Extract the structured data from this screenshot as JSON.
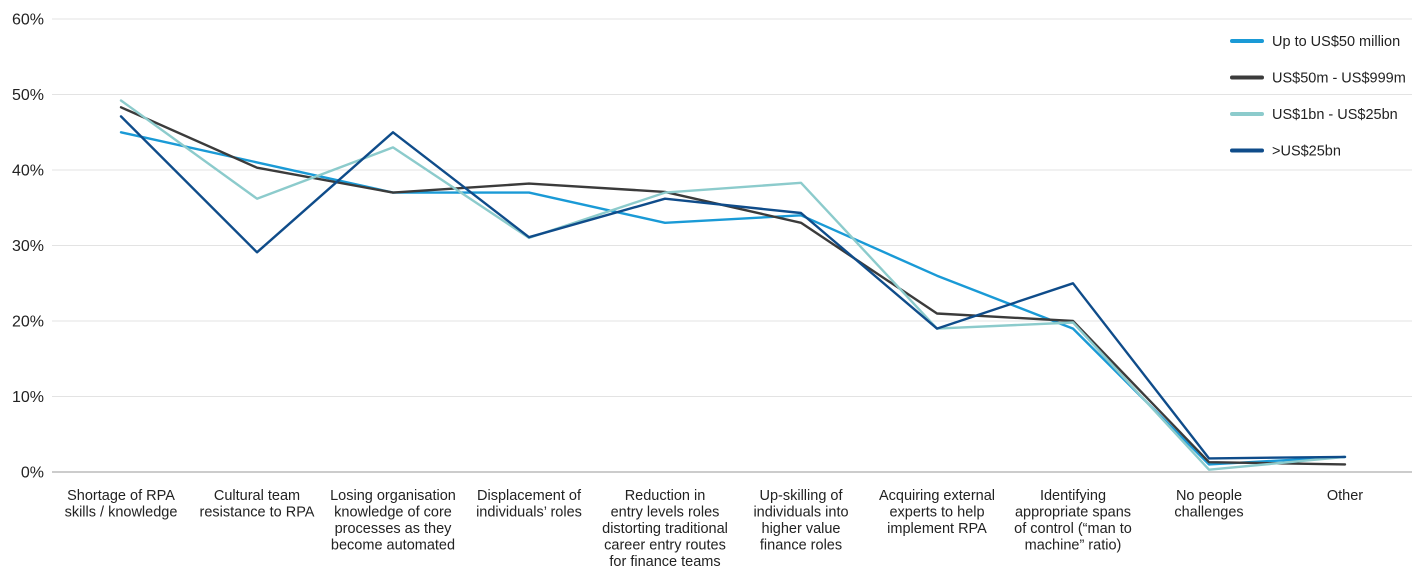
{
  "chart_data": {
    "type": "line",
    "categories": [
      [
        "Shortage of RPA",
        "skills / knowledge"
      ],
      [
        "Cultural team",
        "resistance to RPA"
      ],
      [
        "Losing organisation",
        "knowledge of core",
        "processes as they",
        "become automated"
      ],
      [
        "Displacement of",
        "individuals’ roles"
      ],
      [
        "Reduction in",
        "entry levels roles",
        "distorting traditional",
        "career entry routes",
        "for finance teams"
      ],
      [
        "Up-skilling of",
        "individuals into",
        "higher value",
        "finance roles"
      ],
      [
        "Acquiring external",
        "experts to help",
        "implement RPA"
      ],
      [
        "Identifying",
        "appropriate spans",
        "of control (“man to",
        "machine” ratio)"
      ],
      [
        "No people",
        "challenges"
      ],
      [
        "Other"
      ]
    ],
    "y_ticks": [
      "0%",
      "10%",
      "20%",
      "30%",
      "40%",
      "50%",
      "60%"
    ],
    "ylim": [
      0,
      60
    ],
    "grid": true,
    "legend_position": "top-right",
    "series": [
      {
        "name": "Up to US$50 million",
        "color": "#1a9ad6",
        "values": [
          45,
          41,
          37,
          37,
          33,
          34,
          26,
          19,
          1,
          2
        ]
      },
      {
        "name": "US$50m - US$999m",
        "color": "#3b3b3b",
        "values": [
          48.3,
          40.3,
          37,
          38.2,
          37.1,
          33,
          21,
          20,
          1.3,
          1
        ]
      },
      {
        "name": "US$1bn - US$25bn",
        "color": "#8ccbcc",
        "values": [
          49.2,
          36.2,
          43,
          31,
          37,
          38.3,
          19,
          19.8,
          0.3,
          2
        ]
      },
      {
        "name": ">US$25bn",
        "color": "#0f4c8a",
        "values": [
          47.1,
          29.1,
          45,
          31.1,
          36.2,
          34.3,
          19,
          25,
          1.8,
          2
        ]
      }
    ]
  }
}
